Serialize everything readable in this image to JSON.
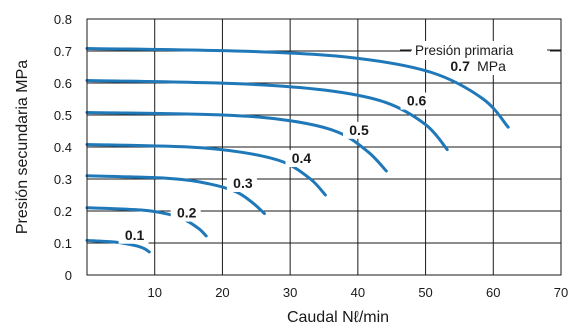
{
  "chart_data": {
    "type": "line",
    "xlabel": "Caudal Nℓ/min",
    "ylabel": "Presión secundaria MPa",
    "xlim": [
      0,
      70
    ],
    "ylim": [
      0,
      0.8
    ],
    "xticks": [
      10,
      20,
      30,
      40,
      50,
      60,
      70
    ],
    "yticks": [
      0,
      0.1,
      0.2,
      0.3,
      0.4,
      0.5,
      0.6,
      0.7,
      0.8
    ],
    "xtick_labels": [
      "10",
      "20",
      "30",
      "40",
      "50",
      "60",
      "70"
    ],
    "ytick_labels": [
      "0",
      "0.1",
      "0.2",
      "0.3",
      "0.4",
      "0.5",
      "0.6",
      "0.7",
      "0.8"
    ],
    "grid": true,
    "line_color": "#1f78b8",
    "legend_label": "Presión primaria",
    "series": [
      {
        "label": "0.1",
        "unit": "",
        "x": [
          0,
          4,
          6,
          7.5,
          8.5,
          9.2
        ],
        "y": [
          0.108,
          0.103,
          0.097,
          0.09,
          0.082,
          0.072
        ]
      },
      {
        "label": "0.2",
        "unit": "",
        "x": [
          0,
          8,
          12,
          14.5,
          16.5,
          17.6
        ],
        "y": [
          0.21,
          0.203,
          0.19,
          0.172,
          0.145,
          0.122
        ]
      },
      {
        "label": "0.3",
        "unit": "",
        "x": [
          0,
          12,
          18,
          22,
          24.5,
          26.2
        ],
        "y": [
          0.31,
          0.302,
          0.285,
          0.26,
          0.225,
          0.192
        ]
      },
      {
        "label": "0.4",
        "unit": "",
        "x": [
          0,
          15,
          23,
          29,
          33,
          35.2
        ],
        "y": [
          0.408,
          0.4,
          0.383,
          0.353,
          0.3,
          0.25
        ]
      },
      {
        "label": "0.5",
        "unit": "",
        "x": [
          0,
          20,
          30,
          37,
          41.5,
          44.2
        ],
        "y": [
          0.508,
          0.5,
          0.482,
          0.447,
          0.385,
          0.325
        ]
      },
      {
        "label": "0.6",
        "unit": "",
        "x": [
          0,
          22,
          35,
          44,
          50,
          53.2
        ],
        "y": [
          0.608,
          0.598,
          0.578,
          0.54,
          0.47,
          0.392
        ]
      },
      {
        "label": "0.7",
        "unit": "MPa",
        "x": [
          0,
          25,
          40,
          51,
          58.5,
          62.2
        ],
        "y": [
          0.708,
          0.698,
          0.677,
          0.632,
          0.55,
          0.462
        ]
      }
    ]
  }
}
